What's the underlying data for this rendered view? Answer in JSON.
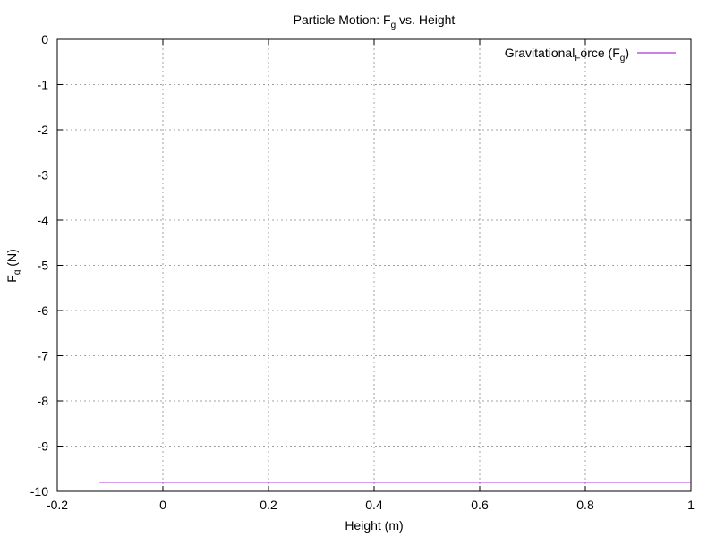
{
  "chart_data": {
    "type": "line",
    "title": {
      "pre": "Particle Motion: F",
      "sub": "g",
      "post": " vs. Height"
    },
    "xlabel": "Height (m)",
    "ylabel": {
      "pre": "F",
      "sub": "g",
      "post": " (N)"
    },
    "xlim": [
      -0.2,
      1
    ],
    "ylim": [
      -10,
      0
    ],
    "x_ticks": [
      -0.2,
      0,
      0.2,
      0.4,
      0.6,
      0.8,
      1
    ],
    "x_tick_labels": [
      "-0.2",
      "0",
      "0.2",
      "0.4",
      "0.6",
      "0.8",
      "1"
    ],
    "y_ticks": [
      0,
      -1,
      -2,
      -3,
      -4,
      -5,
      -6,
      -7,
      -8,
      -9,
      -10
    ],
    "y_tick_labels": [
      "0",
      "-1",
      "-2",
      "-3",
      "-4",
      "-5",
      "-6",
      "-7",
      "-8",
      "-9",
      "-10"
    ],
    "grid": true,
    "legend_position": "top-right",
    "series": [
      {
        "legend_parts": {
          "pre": "Gravitational",
          "sub1": "F",
          "mid": "orce (F",
          "sub2": "g",
          "post": ")"
        },
        "color": "#9400d3",
        "x": [
          -0.12,
          1
        ],
        "y": [
          -9.8,
          -9.8
        ]
      }
    ]
  }
}
